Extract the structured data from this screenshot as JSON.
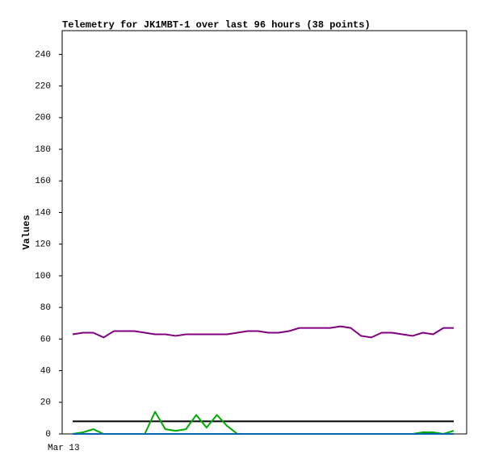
{
  "chart_data": {
    "type": "line",
    "title": "Telemetry for JK1MBT-1 over last 96 hours (38 points)",
    "y_label": "Values",
    "categories": [
      "Mar 13",
      null,
      null,
      null,
      null,
      null,
      null,
      null,
      null,
      null,
      null,
      null,
      null,
      null,
      null,
      null,
      null,
      null,
      null,
      null,
      null,
      null,
      null,
      null,
      null,
      null,
      null,
      null,
      null,
      null,
      null,
      null,
      null,
      null,
      null,
      null,
      null,
      null
    ],
    "ylim": [
      0,
      255
    ],
    "yticks": [
      0,
      20,
      40,
      60,
      80,
      100,
      120,
      140,
      160,
      180,
      200,
      220,
      240
    ],
    "series": [
      {
        "color": "#800080",
        "values": [
          63,
          64,
          64,
          61,
          65,
          65,
          65,
          64,
          63,
          63,
          62,
          63,
          63,
          63,
          63,
          63,
          64,
          65,
          65,
          64,
          64,
          65,
          67,
          67,
          67,
          67,
          68,
          67,
          62,
          61,
          64,
          64,
          63,
          62,
          64,
          63,
          67,
          67
        ]
      },
      {
        "color": "#000000",
        "values": [
          8,
          8,
          8,
          8,
          8,
          8,
          8,
          8,
          8,
          8,
          8,
          8,
          8,
          8,
          8,
          8,
          8,
          8,
          8,
          8,
          8,
          8,
          8,
          8,
          8,
          8,
          8,
          8,
          8,
          8,
          8,
          8,
          8,
          8,
          8,
          8,
          8,
          8
        ]
      },
      {
        "color": "#00aa00",
        "values": [
          0,
          1,
          3,
          0,
          0,
          0,
          0,
          0,
          14,
          3,
          2,
          3,
          12,
          4,
          12,
          5,
          0,
          0,
          0,
          0,
          0,
          0,
          0,
          0,
          0,
          0,
          0,
          0,
          0,
          0,
          0,
          0,
          0,
          0,
          1,
          1,
          0,
          2
        ]
      },
      {
        "color": "#0066b3",
        "values": [
          0,
          0,
          0,
          0,
          0,
          0,
          0,
          0,
          0,
          0,
          0,
          0,
          0,
          0,
          0,
          0,
          0,
          0,
          0,
          0,
          0,
          0,
          0,
          0,
          0,
          0,
          0,
          0,
          0,
          0,
          0,
          0,
          0,
          0,
          0,
          0,
          0,
          0
        ]
      }
    ]
  }
}
